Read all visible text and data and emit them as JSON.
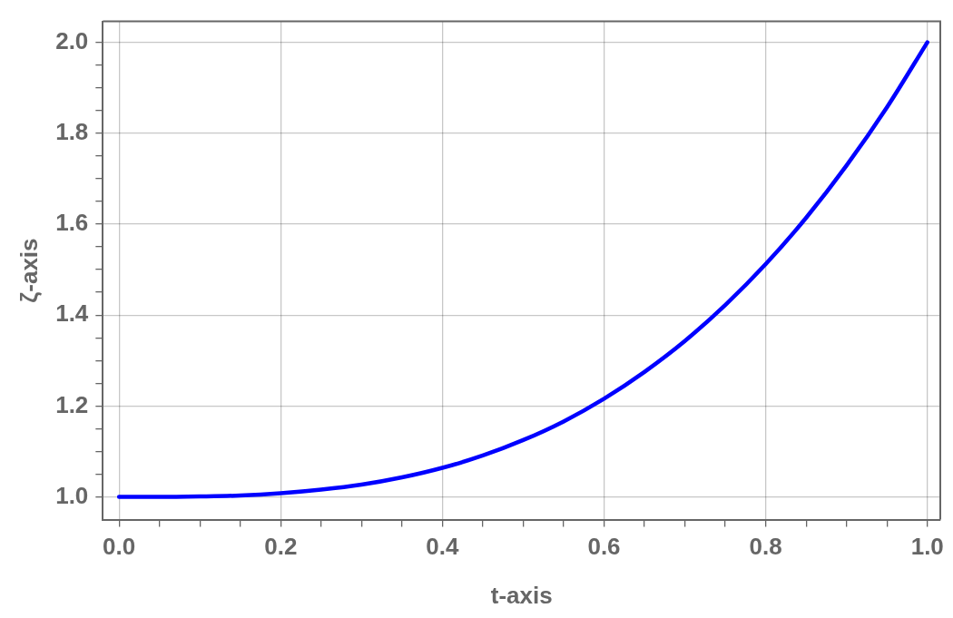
{
  "chart_data": {
    "type": "line",
    "xlabel": "t-axis",
    "ylabel": "ζ-axis",
    "x": [
      0,
      0.05,
      0.1,
      0.15,
      0.2,
      0.25,
      0.3,
      0.35,
      0.4,
      0.45,
      0.5,
      0.55,
      0.6,
      0.65,
      0.7,
      0.75,
      0.8,
      0.85,
      0.9,
      0.95,
      1.0
    ],
    "series": [
      {
        "color": "#0000ff",
        "values": [
          1.0,
          1.0,
          1.001,
          1.003,
          1.008,
          1.016,
          1.027,
          1.043,
          1.064,
          1.091,
          1.125,
          1.166,
          1.216,
          1.275,
          1.343,
          1.422,
          1.512,
          1.614,
          1.729,
          1.857,
          2.0
        ]
      }
    ],
    "xlim": [
      -0.02,
      1.016
    ],
    "ylim": [
      0.95,
      2.046
    ],
    "xticks": [
      {
        "value": 0,
        "label": "0.0"
      },
      {
        "value": 0.05,
        "label": null
      },
      {
        "value": 0.1,
        "label": null
      },
      {
        "value": 0.15,
        "label": null
      },
      {
        "value": 0.2,
        "label": "0.2"
      },
      {
        "value": 0.25,
        "label": null
      },
      {
        "value": 0.3,
        "label": null
      },
      {
        "value": 0.35,
        "label": null
      },
      {
        "value": 0.4,
        "label": "0.4"
      },
      {
        "value": 0.45,
        "label": null
      },
      {
        "value": 0.5,
        "label": null
      },
      {
        "value": 0.55,
        "label": null
      },
      {
        "value": 0.6,
        "label": "0.6"
      },
      {
        "value": 0.65,
        "label": null
      },
      {
        "value": 0.7,
        "label": null
      },
      {
        "value": 0.75,
        "label": null
      },
      {
        "value": 0.8,
        "label": "0.8"
      },
      {
        "value": 0.85,
        "label": null
      },
      {
        "value": 0.9,
        "label": null
      },
      {
        "value": 0.95,
        "label": null
      },
      {
        "value": 1.0,
        "label": "1.0"
      }
    ],
    "yticks": [
      {
        "value": 1.0,
        "label": "1.0"
      },
      {
        "value": 1.05,
        "label": null
      },
      {
        "value": 1.1,
        "label": null
      },
      {
        "value": 1.15,
        "label": null
      },
      {
        "value": 1.2,
        "label": "1.2"
      },
      {
        "value": 1.25,
        "label": null
      },
      {
        "value": 1.3,
        "label": null
      },
      {
        "value": 1.35,
        "label": null
      },
      {
        "value": 1.4,
        "label": "1.4"
      },
      {
        "value": 1.45,
        "label": null
      },
      {
        "value": 1.5,
        "label": null
      },
      {
        "value": 1.55,
        "label": null
      },
      {
        "value": 1.6,
        "label": "1.6"
      },
      {
        "value": 1.65,
        "label": null
      },
      {
        "value": 1.7,
        "label": null
      },
      {
        "value": 1.75,
        "label": null
      },
      {
        "value": 1.8,
        "label": "1.8"
      },
      {
        "value": 1.85,
        "label": null
      },
      {
        "value": 1.9,
        "label": null
      },
      {
        "value": 1.95,
        "label": null
      },
      {
        "value": 2.0,
        "label": "2.0"
      }
    ],
    "grid": true,
    "legend": false,
    "marker": "none",
    "line_style": "solid"
  }
}
